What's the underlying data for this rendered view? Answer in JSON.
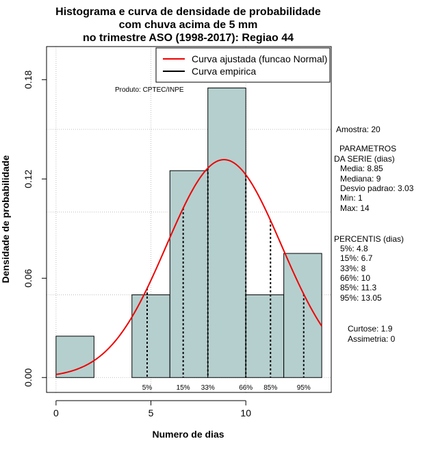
{
  "chart_data": {
    "type": "bar",
    "title": [
      "Histograma e curva de densidade de probabilidade",
      "com chuva acima de 5 mm",
      "no trimestre ASO (1998-2017): Regiao 44"
    ],
    "xlabel": "Numero de dias",
    "ylabel": "Densidade de probabilidade",
    "xlim": [
      -0.5,
      14.5
    ],
    "ylim": [
      -0.009,
      0.2
    ],
    "xticks": [
      0,
      5,
      10
    ],
    "xtick_labels": [
      "0",
      "5",
      "10"
    ],
    "yticks": [
      0.0,
      0.06,
      0.12,
      0.18
    ],
    "ytick_labels": [
      "0.00",
      "0.06",
      "0.12",
      "0.18"
    ],
    "grid": true,
    "histogram": {
      "bins": [
        [
          0,
          2
        ],
        [
          2,
          4
        ],
        [
          4,
          6
        ],
        [
          6,
          8
        ],
        [
          8,
          10
        ],
        [
          10,
          12
        ],
        [
          12,
          14
        ]
      ],
      "values": [
        0.025,
        0.0,
        0.05,
        0.125,
        0.175,
        0.05,
        0.075
      ],
      "fill": "#b5cfce"
    },
    "normal_curve": {
      "name": "Curva ajustada (funcao Normal)",
      "mean": 8.85,
      "sd": 3.03,
      "x_range": [
        0,
        14
      ],
      "color": "#ee0000"
    },
    "empirical_curve": {
      "name": "Curva empirica",
      "color": "#000000"
    },
    "percentile_lines": [
      {
        "label": "5%",
        "x": 4.8
      },
      {
        "label": "15%",
        "x": 6.7
      },
      {
        "label": "33%",
        "x": 8
      },
      {
        "label": "66%",
        "x": 10
      },
      {
        "label": "85%",
        "x": 11.3
      },
      {
        "label": "95%",
        "x": 13.05
      }
    ],
    "legend": {
      "placement": "top-right",
      "entries": [
        "Curva ajustada (funcao Normal)",
        "Curva empirica"
      ]
    },
    "credit": "Produto: CPTEC/INPE"
  },
  "stats": {
    "amostra": "Amostra: 20",
    "params_title_1": "PARAMETROS",
    "params_title_2": "DA SERIE (dias)",
    "media": "Media: 8.85",
    "mediana": "Mediana: 9",
    "desvio": "Desvio padrao: 3.03",
    "min": "Min: 1",
    "max": "Max: 14",
    "percentis_title": "PERCENTIS (dias)",
    "p5": "5%: 4.8",
    "p15": "15%: 6.7",
    "p33": "33%: 8",
    "p66": "66%: 10",
    "p85": "85%: 11.3",
    "p95": "95%: 13.05",
    "curtose": "Curtose: 1.9",
    "assimetria": "Assimetria: 0"
  }
}
